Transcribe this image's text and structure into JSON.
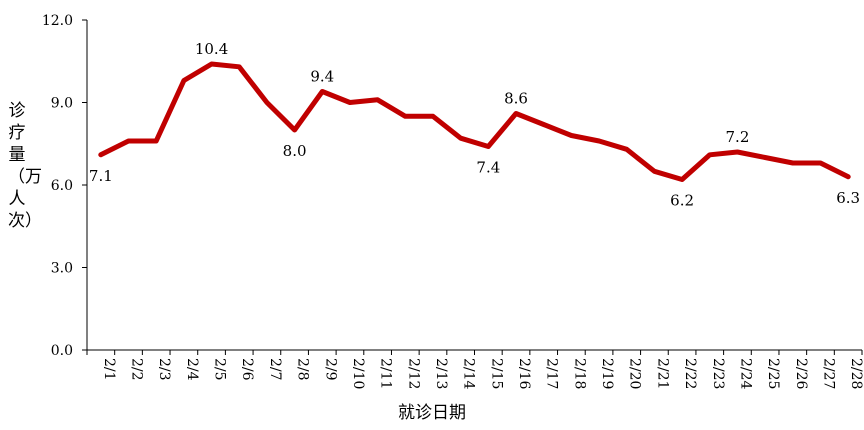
{
  "chart_data": {
    "type": "line",
    "xlabel": "就诊日期",
    "ylabel": "诊疗量（万人次）",
    "ylim": [
      0,
      12
    ],
    "yticks": [
      "0.0",
      "3.0",
      "6.0",
      "9.0",
      "12.0"
    ],
    "grid": false,
    "legend": "none",
    "line_color": "#C00000",
    "categories": [
      "2/1",
      "2/2",
      "2/3",
      "2/4",
      "2/5",
      "2/6",
      "2/7",
      "2/8",
      "2/9",
      "2/10",
      "2/11",
      "2/12",
      "2/13",
      "2/14",
      "2/15",
      "2/16",
      "2/17",
      "2/18",
      "2/19",
      "2/20",
      "2/21",
      "2/22",
      "2/23",
      "2/24",
      "2/25",
      "2/26",
      "2/27",
      "2/28"
    ],
    "values": [
      7.1,
      7.6,
      7.6,
      9.8,
      10.4,
      10.3,
      9.0,
      8.0,
      9.4,
      9.0,
      9.1,
      8.5,
      8.5,
      7.7,
      7.4,
      8.6,
      8.2,
      7.8,
      7.6,
      7.3,
      6.5,
      6.2,
      7.1,
      7.2,
      7.0,
      6.8,
      6.8,
      6.3
    ],
    "data_labels": [
      {
        "index": 0,
        "text": "7.1",
        "pos": "below"
      },
      {
        "index": 4,
        "text": "10.4",
        "pos": "above"
      },
      {
        "index": 7,
        "text": "8.0",
        "pos": "below"
      },
      {
        "index": 8,
        "text": "9.4",
        "pos": "above"
      },
      {
        "index": 14,
        "text": "7.4",
        "pos": "below"
      },
      {
        "index": 15,
        "text": "8.6",
        "pos": "above"
      },
      {
        "index": 21,
        "text": "6.2",
        "pos": "below"
      },
      {
        "index": 23,
        "text": "7.2",
        "pos": "above"
      },
      {
        "index": 27,
        "text": "6.3",
        "pos": "below"
      }
    ]
  }
}
